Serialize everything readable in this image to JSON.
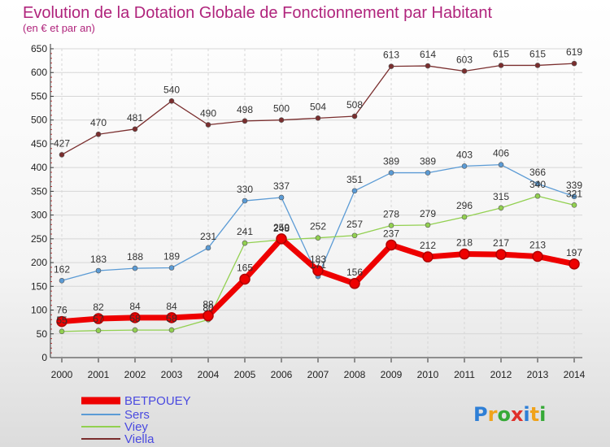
{
  "chart_data": {
    "type": "line",
    "title": "Evolution de la Dotation Globale de Fonctionnement par Habitant",
    "subtitle": "(en € et par an)",
    "xlabel": "",
    "ylabel": "",
    "ylim": [
      0,
      650
    ],
    "yticks": [
      "0",
      "50",
      "100",
      "150",
      "200",
      "250",
      "300",
      "350",
      "400",
      "450",
      "500",
      "550",
      "600",
      "650"
    ],
    "x": [
      "2000",
      "2001",
      "2002",
      "2003",
      "2004",
      "2005",
      "2006",
      "2007",
      "2008",
      "2009",
      "2010",
      "2011",
      "2012",
      "2013",
      "2014"
    ],
    "grid": true,
    "legend_position": "bottom-left",
    "series": [
      {
        "name": "BETPOUEY",
        "color": "#ee0000",
        "values": [
          76,
          82,
          84,
          84,
          88,
          165,
          250,
          183,
          156,
          237,
          212,
          218,
          217,
          213,
          197
        ],
        "labels": [
          "76",
          "82",
          "84",
          "84",
          "88",
          "165",
          "250",
          "183",
          "156",
          "237",
          "212",
          "218",
          "217",
          "213",
          "197"
        ]
      },
      {
        "name": "Sers",
        "color": "#5b9bd5",
        "values": [
          162,
          183,
          188,
          189,
          231,
          330,
          337,
          171,
          351,
          389,
          389,
          403,
          406,
          366,
          339
        ],
        "labels": [
          "162",
          "183",
          "188",
          "189",
          "231",
          "330",
          "337",
          "171",
          "351",
          "389",
          "389",
          "403",
          "406",
          "366",
          "339"
        ]
      },
      {
        "name": "Viey",
        "color": "#92d050",
        "values": [
          55,
          57,
          58,
          58,
          80,
          241,
          248,
          252,
          257,
          278,
          279,
          296,
          315,
          340,
          321
        ],
        "labels": [
          "55",
          "57",
          "58",
          "58",
          "80",
          "241",
          "248",
          "252",
          "257",
          "278",
          "279",
          "296",
          "315",
          "340",
          "321"
        ]
      },
      {
        "name": "Viella",
        "color": "#7a2e2e",
        "values": [
          427,
          470,
          481,
          540,
          490,
          498,
          500,
          504,
          508,
          613,
          614,
          603,
          615,
          615,
          619
        ],
        "labels": [
          "427",
          "470",
          "481",
          "540",
          "490",
          "498",
          "500",
          "504",
          "508",
          "613",
          "614",
          "603",
          "615",
          "615",
          "619"
        ]
      }
    ]
  },
  "logo": {
    "text": "Proxiti",
    "colors": [
      "#2e7fd6",
      "#f0a31b",
      "#36a937",
      "#e0302a",
      "#2e7fd6",
      "#f0a31b",
      "#36a937"
    ]
  }
}
